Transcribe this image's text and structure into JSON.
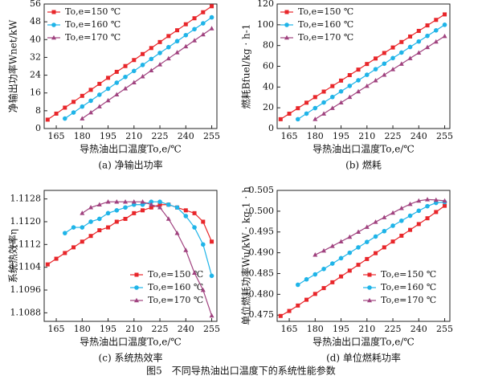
{
  "caption": "图5　不同导热油出口温度下的系统性能参数",
  "chart_data": [
    {
      "type": "line",
      "subtitle": "(a) 净输出功率",
      "xlabel": "导热油出口温度To,e/℃",
      "ylabel": "净输出功率Wnet/kW",
      "xlim": [
        158,
        258
      ],
      "xticks": [
        165,
        180,
        195,
        210,
        225,
        240,
        255
      ],
      "ylim": [
        0,
        56
      ],
      "yticks": [
        0,
        8,
        16,
        24,
        32,
        40,
        48,
        56
      ],
      "legend": "upper left",
      "series": [
        {
          "name": "To,e=150 ℃",
          "color": "#e8262a",
          "marker": "square",
          "x": [
            160,
            165,
            170,
            175,
            180,
            185,
            190,
            195,
            200,
            205,
            210,
            215,
            220,
            225,
            230,
            235,
            240,
            245,
            250,
            255
          ],
          "values": [
            4,
            6.7,
            9.4,
            12.0,
            14.7,
            17.4,
            20.1,
            22.8,
            25.5,
            28.1,
            30.8,
            33.5,
            36.2,
            38.9,
            41.6,
            44.2,
            46.9,
            49.6,
            52.3,
            55
          ]
        },
        {
          "name": "To,e=160 ℃",
          "color": "#1fb4e8",
          "marker": "circle",
          "x": [
            170,
            175,
            180,
            185,
            190,
            195,
            200,
            205,
            210,
            215,
            220,
            225,
            230,
            235,
            240,
            245,
            250,
            255
          ],
          "values": [
            4.5,
            7.2,
            9.9,
            12.5,
            15.2,
            17.9,
            20.6,
            23.2,
            25.9,
            28.6,
            31.3,
            34.0,
            36.6,
            39.3,
            42.0,
            44.7,
            47.3,
            50
          ]
        },
        {
          "name": "To,e=170 ℃",
          "color": "#a0427f",
          "marker": "triangle",
          "x": [
            180,
            185,
            190,
            195,
            200,
            205,
            210,
            215,
            220,
            225,
            230,
            235,
            240,
            245,
            250,
            255
          ],
          "values": [
            4.5,
            7.2,
            9.9,
            12.6,
            15.3,
            18.0,
            20.7,
            23.4,
            26.1,
            28.8,
            31.5,
            34.2,
            36.9,
            39.6,
            42.3,
            45
          ]
        }
      ]
    },
    {
      "type": "line",
      "subtitle": "(b) 燃耗",
      "xlabel": "导热油出口温度To,e/℃",
      "ylabel": "燃耗Bfuel/kg · h-1",
      "xlim": [
        158,
        258
      ],
      "xticks": [
        165,
        180,
        195,
        210,
        225,
        240,
        255
      ],
      "ylim": [
        0,
        120
      ],
      "yticks": [
        0,
        20,
        40,
        60,
        80,
        100,
        120
      ],
      "legend": "upper left",
      "series": [
        {
          "name": "To,e=150 ℃",
          "color": "#e8262a",
          "marker": "square",
          "x": [
            160,
            165,
            170,
            175,
            180,
            185,
            190,
            195,
            200,
            205,
            210,
            215,
            220,
            225,
            230,
            235,
            240,
            245,
            250,
            255
          ],
          "values": [
            9,
            14.3,
            19.6,
            24.9,
            30.3,
            35.6,
            40.9,
            46.2,
            51.5,
            56.8,
            62.2,
            67.5,
            72.8,
            78.1,
            83.4,
            88.7,
            94.1,
            99.4,
            104.7,
            110
          ]
        },
        {
          "name": "To,e=160 ℃",
          "color": "#1fb4e8",
          "marker": "circle",
          "x": [
            170,
            175,
            180,
            185,
            190,
            195,
            200,
            205,
            210,
            215,
            220,
            225,
            230,
            235,
            240,
            245,
            250,
            255
          ],
          "values": [
            9,
            14.4,
            19.7,
            25.1,
            30.4,
            35.8,
            41.1,
            46.5,
            51.8,
            57.2,
            62.5,
            67.9,
            73.2,
            78.6,
            83.9,
            89.3,
            94.6,
            100
          ]
        },
        {
          "name": "To,e=170 ℃",
          "color": "#a0427f",
          "marker": "triangle",
          "x": [
            180,
            185,
            190,
            195,
            200,
            205,
            210,
            215,
            220,
            225,
            230,
            235,
            240,
            245,
            250,
            255
          ],
          "values": [
            9,
            14.3,
            19.7,
            25,
            30.3,
            35.7,
            41,
            46.3,
            51.7,
            57,
            62.3,
            67.7,
            73,
            78.3,
            83.7,
            89
          ]
        }
      ]
    },
    {
      "type": "line",
      "subtitle": "(c) 系统热效率",
      "xlabel": "导热油出口温度To,e/℃",
      "ylabel": "系统热效率η",
      "xlim": [
        158,
        258
      ],
      "xticks": [
        165,
        180,
        195,
        210,
        225,
        240,
        255
      ],
      "ylim": [
        1.1085,
        1.1131
      ],
      "yticks": [
        1.1088,
        1.1096,
        1.1104,
        1.1112,
        {
          "value": 1.112,
          "label": "1.1120"
        },
        1.1128
      ],
      "legend": "lower right",
      "series": [
        {
          "name": "To,e=150 ℃",
          "color": "#e8262a",
          "marker": "square",
          "x": [
            160,
            165,
            170,
            175,
            180,
            185,
            190,
            195,
            200,
            205,
            210,
            215,
            220,
            225,
            230,
            235,
            240,
            245,
            250,
            255
          ],
          "values": [
            1.1105,
            1.1107,
            1.1109,
            1.1111,
            1.1113,
            1.1115,
            1.1117,
            1.1118,
            1.112,
            1.1121,
            1.1123,
            1.1124,
            1.1125,
            1.1126,
            1.1126,
            1.1125,
            1.1124,
            1.1123,
            1.112,
            1.1113
          ]
        },
        {
          "name": "To,e=160 ℃",
          "color": "#1fb4e8",
          "marker": "circle",
          "x": [
            170,
            175,
            180,
            185,
            190,
            195,
            200,
            205,
            210,
            215,
            220,
            225,
            230,
            235,
            240,
            245,
            250,
            255
          ],
          "values": [
            1.1116,
            1.1118,
            1.1118,
            1.112,
            1.1121,
            1.1123,
            1.1124,
            1.1125,
            1.1126,
            1.1126,
            1.1127,
            1.1127,
            1.1126,
            1.1125,
            1.1122,
            1.1118,
            1.1112,
            1.1101
          ]
        },
        {
          "name": "To,e=170 ℃",
          "color": "#a0427f",
          "marker": "triangle",
          "x": [
            180,
            185,
            190,
            195,
            200,
            205,
            210,
            215,
            220,
            225,
            230,
            235,
            240,
            245,
            250,
            255
          ],
          "values": [
            1.1123,
            1.1125,
            1.1126,
            1.1127,
            1.1127,
            1.1127,
            1.1127,
            1.1127,
            1.1126,
            1.1125,
            1.1121,
            1.1116,
            1.111,
            1.1102,
            1.1096,
            1.1087
          ]
        }
      ]
    },
    {
      "type": "line",
      "subtitle": "(d) 单位燃耗功率",
      "xlabel": "导热油出口温度To,e/℃",
      "ylabel": "单位燃耗功率Wu/kW · kg-1 · h",
      "xlim": [
        158,
        258
      ],
      "xticks": [
        165,
        180,
        195,
        210,
        225,
        240,
        255
      ],
      "ylim": [
        0.4735,
        0.505
      ],
      "yticks": [
        0.475,
        {
          "value": 0.48,
          "label": "0.480"
        },
        0.485,
        {
          "value": 0.49,
          "label": "0.490"
        },
        0.495,
        {
          "value": 0.5,
          "label": "0.500"
        },
        0.505
      ],
      "legend": "lower right",
      "series": [
        {
          "name": "To,e=150 ℃",
          "color": "#e8262a",
          "marker": "square",
          "x": [
            160,
            165,
            170,
            175,
            180,
            185,
            190,
            195,
            200,
            205,
            210,
            215,
            220,
            225,
            230,
            235,
            240,
            245,
            250,
            255
          ],
          "values": [
            0.4748,
            0.476,
            0.4773,
            0.4787,
            0.4801,
            0.4815,
            0.4829,
            0.4843,
            0.4857,
            0.4871,
            0.4885,
            0.4899,
            0.4913,
            0.4927,
            0.4941,
            0.4955,
            0.4969,
            0.4983,
            0.4998,
            0.5013
          ]
        },
        {
          "name": "To,e=160 ℃",
          "color": "#1fb4e8",
          "marker": "circle",
          "x": [
            170,
            175,
            180,
            185,
            190,
            195,
            200,
            205,
            210,
            215,
            220,
            225,
            230,
            235,
            240,
            245,
            250,
            255
          ],
          "values": [
            0.4823,
            0.4836,
            0.4848,
            0.4861,
            0.4874,
            0.4887,
            0.49,
            0.4913,
            0.4926,
            0.4939,
            0.4952,
            0.4965,
            0.4977,
            0.4989,
            0.5001,
            0.5012,
            0.502,
            0.5022
          ]
        },
        {
          "name": "To,e=170 ℃",
          "color": "#a0427f",
          "marker": "triangle",
          "x": [
            180,
            185,
            190,
            195,
            200,
            205,
            210,
            215,
            220,
            225,
            230,
            235,
            240,
            245,
            250,
            255
          ],
          "values": [
            0.4895,
            0.4905,
            0.4916,
            0.4927,
            0.4938,
            0.495,
            0.4962,
            0.4974,
            0.4985,
            0.4996,
            0.5007,
            0.5017,
            0.5025,
            0.5028,
            0.5027,
            0.5025
          ]
        }
      ]
    }
  ]
}
